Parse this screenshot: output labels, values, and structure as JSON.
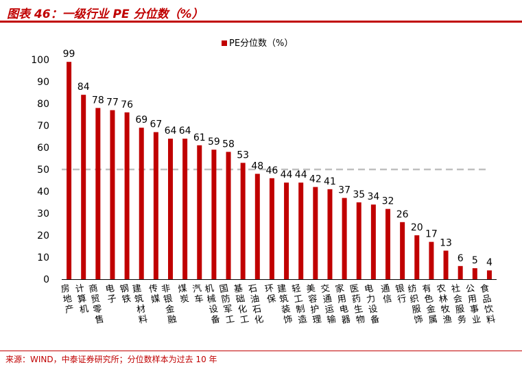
{
  "figure": {
    "title": "图表 46：一级行业 PE 分位数（%）",
    "source": "来源：WIND，中泰证券研究所；分位数样本为过去 10 年"
  },
  "colors": {
    "bar": "#c00000",
    "reference_line": "#bfbfbf",
    "accent": "#c00000"
  },
  "chart_data": {
    "type": "bar",
    "title": "",
    "xlabel": "",
    "ylabel": "",
    "ylim": [
      0,
      100
    ],
    "yticks": [
      0,
      10,
      20,
      30,
      40,
      50,
      60,
      70,
      80,
      90,
      100
    ],
    "reference_line": 50,
    "legend_position": "top-center",
    "categories": [
      "房地产",
      "计算机",
      "商贸零售",
      "电子",
      "钢铁",
      "建筑材料",
      "传媒",
      "非银金融",
      "煤炭",
      "汽车",
      "机械设备",
      "国防军工",
      "基础化工",
      "石油石化",
      "环保",
      "建筑装饰",
      "轻工制造",
      "美容护理",
      "交通运输",
      "家用电器",
      "医药生物",
      "电力设备",
      "通信",
      "银行",
      "纺织服饰",
      "有色金属",
      "农林牧渔",
      "社会服务",
      "公用事业",
      "食品饮料"
    ],
    "series": [
      {
        "name": "PE分位数（%）",
        "values": [
          99,
          84,
          78,
          77,
          76,
          69,
          67,
          64,
          64,
          61,
          59,
          58,
          53,
          48,
          46,
          44,
          44,
          42,
          41,
          37,
          35,
          34,
          32,
          26,
          20,
          17,
          13,
          6,
          5,
          4
        ]
      }
    ]
  }
}
